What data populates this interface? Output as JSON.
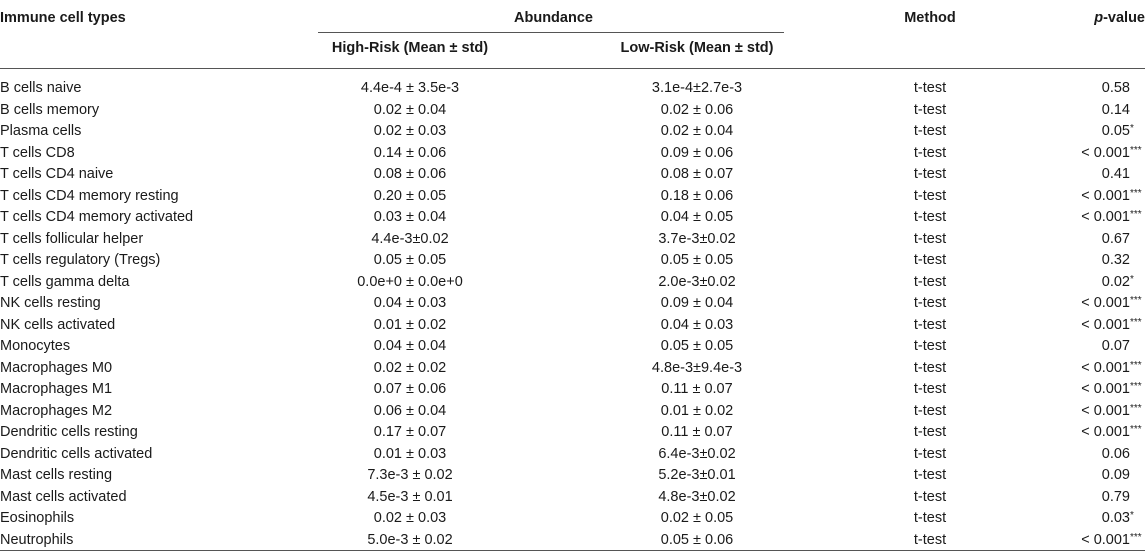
{
  "table": {
    "headers": {
      "cell_type": "Immune cell types",
      "abundance": "Abundance",
      "high_risk": "High-Risk (Mean ± std)",
      "low_risk": "Low-Risk (Mean ± std)",
      "method": "Method",
      "p_italic": "p",
      "p_rest": "-value"
    },
    "rows": [
      {
        "name": "B cells naive",
        "high": "4.4e-4 ± 3.5e-3",
        "low": "3.1e-4±2.7e-3",
        "method": "t-test",
        "p": "0.58",
        "sig": ""
      },
      {
        "name": "B cells memory",
        "high": "0.02 ± 0.04",
        "low": "0.02 ± 0.06",
        "method": "t-test",
        "p": "0.14",
        "sig": ""
      },
      {
        "name": "Plasma cells",
        "high": "0.02 ± 0.03",
        "low": "0.02 ± 0.04",
        "method": "t-test",
        "p": "0.05",
        "sig": "*"
      },
      {
        "name": "T cells CD8",
        "high": "0.14 ± 0.06",
        "low": "0.09 ± 0.06",
        "method": "t-test",
        "p": "< 0.001",
        "sig": "***"
      },
      {
        "name": "T cells CD4 naive",
        "high": "0.08 ± 0.06",
        "low": "0.08 ± 0.07",
        "method": "t-test",
        "p": "0.41",
        "sig": ""
      },
      {
        "name": "T cells CD4 memory resting",
        "high": "0.20 ± 0.05",
        "low": "0.18 ± 0.06",
        "method": "t-test",
        "p": "< 0.001",
        "sig": "***"
      },
      {
        "name": "T cells CD4 memory activated",
        "high": "0.03 ± 0.04",
        "low": "0.04 ± 0.05",
        "method": "t-test",
        "p": "< 0.001",
        "sig": "***"
      },
      {
        "name": "T cells follicular helper",
        "high": "4.4e-3±0.02",
        "low": "3.7e-3±0.02",
        "method": "t-test",
        "p": "0.67",
        "sig": ""
      },
      {
        "name": "T cells regulatory (Tregs)",
        "high": "0.05 ± 0.05",
        "low": "0.05 ± 0.05",
        "method": "t-test",
        "p": "0.32",
        "sig": ""
      },
      {
        "name": "T cells gamma delta",
        "high": "0.0e+0 ± 0.0e+0",
        "low": "2.0e-3±0.02",
        "method": "t-test",
        "p": "0.02",
        "sig": "*"
      },
      {
        "name": "NK cells resting",
        "high": "0.04 ± 0.03",
        "low": "0.09 ± 0.04",
        "method": "t-test",
        "p": "< 0.001",
        "sig": "***"
      },
      {
        "name": "NK cells activated",
        "high": "0.01 ± 0.02",
        "low": "0.04 ± 0.03",
        "method": "t-test",
        "p": "< 0.001",
        "sig": "***"
      },
      {
        "name": "Monocytes",
        "high": "0.04 ± 0.04",
        "low": "0.05 ± 0.05",
        "method": "t-test",
        "p": "0.07",
        "sig": ""
      },
      {
        "name": "Macrophages M0",
        "high": "0.02 ± 0.02",
        "low": "4.8e-3±9.4e-3",
        "method": "t-test",
        "p": "< 0.001",
        "sig": "***"
      },
      {
        "name": "Macrophages M1",
        "high": "0.07 ± 0.06",
        "low": "0.11 ± 0.07",
        "method": "t-test",
        "p": "< 0.001",
        "sig": "***"
      },
      {
        "name": "Macrophages M2",
        "high": "0.06 ± 0.04",
        "low": "0.01 ± 0.02",
        "method": "t-test",
        "p": "< 0.001",
        "sig": "***"
      },
      {
        "name": "Dendritic cells resting",
        "high": "0.17 ± 0.07",
        "low": "0.11 ± 0.07",
        "method": "t-test",
        "p": "< 0.001",
        "sig": "***"
      },
      {
        "name": "Dendritic cells activated",
        "high": "0.01 ± 0.03",
        "low": "6.4e-3±0.02",
        "method": "t-test",
        "p": "0.06",
        "sig": ""
      },
      {
        "name": "Mast cells resting",
        "high": "7.3e-3 ± 0.02",
        "low": "5.2e-3±0.01",
        "method": "t-test",
        "p": "0.09",
        "sig": ""
      },
      {
        "name": "Mast cells activated",
        "high": "4.5e-3 ± 0.01",
        "low": "4.8e-3±0.02",
        "method": "t-test",
        "p": "0.79",
        "sig": ""
      },
      {
        "name": "Eosinophils",
        "high": "0.02 ± 0.03",
        "low": "0.02 ± 0.05",
        "method": "t-test",
        "p": "0.03",
        "sig": "*"
      },
      {
        "name": "Neutrophils",
        "high": "5.0e-3 ± 0.02",
        "low": "0.05 ± 0.06",
        "method": "t-test",
        "p": "< 0.001",
        "sig": "***"
      }
    ]
  }
}
